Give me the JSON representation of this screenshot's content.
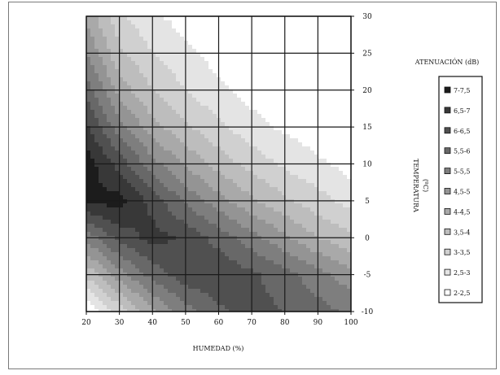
{
  "chart_data": {
    "type": "contour",
    "x": [
      20,
      30,
      40,
      50,
      60,
      70,
      80,
      90,
      100
    ],
    "y": [
      -10,
      -5,
      0,
      5,
      10,
      15,
      20,
      25,
      30
    ],
    "xlim": [
      20,
      100
    ],
    "ylim": [
      -10,
      30
    ],
    "x_ticks": [
      "20",
      "30",
      "40",
      "50",
      "60",
      "70",
      "80",
      "90",
      "100"
    ],
    "y_ticks": [
      "-10",
      "-5",
      "0",
      "5",
      "10",
      "15",
      "20",
      "25",
      "30"
    ],
    "xlabel": "HUMEDAD (%)",
    "ylabel_line1": "TEMPERATURA",
    "ylabel_line2": "(ºC)",
    "legend_title": "ATENUACIÓN (dB)",
    "legend_placement": "right",
    "grid": true,
    "z": [
      [
        2.0,
        3.2,
        4.4,
        5.3,
        5.9,
        6.2,
        6.0,
        5.7,
        5.4
      ],
      [
        3.6,
        4.8,
        5.7,
        6.3,
        6.4,
        6.1,
        5.7,
        5.2,
        4.7
      ],
      [
        5.2,
        6.2,
        6.7,
        6.4,
        5.8,
        5.2,
        4.6,
        4.0,
        3.6
      ],
      [
        7.1,
        7.2,
        6.3,
        5.4,
        4.7,
        4.1,
        3.6,
        3.2,
        2.8
      ],
      [
        7.3,
        6.3,
        5.2,
        4.4,
        3.8,
        3.3,
        2.9,
        2.6,
        2.3
      ],
      [
        6.6,
        5.2,
        4.2,
        3.6,
        3.1,
        2.7,
        2.4,
        2.2,
        2.0
      ],
      [
        5.8,
        4.3,
        3.5,
        3.0,
        2.6,
        2.3,
        2.1,
        2.0,
        2.0
      ],
      [
        5.0,
        3.6,
        3.0,
        2.6,
        2.3,
        2.1,
        2.0,
        2.0,
        2.0
      ],
      [
        4.4,
        3.1,
        2.6,
        2.3,
        2.1,
        2.0,
        2.0,
        2.0,
        2.0
      ]
    ],
    "levels": [
      {
        "label": "7-7,5",
        "min": 7.0,
        "max": 7.5,
        "color": "#1c1c1c"
      },
      {
        "label": "6,5-7",
        "min": 6.5,
        "max": 7.0,
        "color": "#383838"
      },
      {
        "label": "6-6,5",
        "min": 6.0,
        "max": 6.5,
        "color": "#505050"
      },
      {
        "label": "5,5-6",
        "min": 5.5,
        "max": 6.0,
        "color": "#686868"
      },
      {
        "label": "5-5,5",
        "min": 5.0,
        "max": 5.5,
        "color": "#7e7e7e"
      },
      {
        "label": "4,5-5",
        "min": 4.5,
        "max": 5.0,
        "color": "#949494"
      },
      {
        "label": "4-4,5",
        "min": 4.0,
        "max": 4.5,
        "color": "#a9a9a9"
      },
      {
        "label": "3,5-4",
        "min": 3.5,
        "max": 4.0,
        "color": "#bdbdbd"
      },
      {
        "label": "3-3,5",
        "min": 3.0,
        "max": 3.5,
        "color": "#d0d0d0"
      },
      {
        "label": "2,5-3",
        "min": 2.5,
        "max": 3.0,
        "color": "#e4e4e4"
      },
      {
        "label": "2-2,5",
        "min": 2.0,
        "max": 2.5,
        "color": "#ffffff"
      }
    ]
  }
}
